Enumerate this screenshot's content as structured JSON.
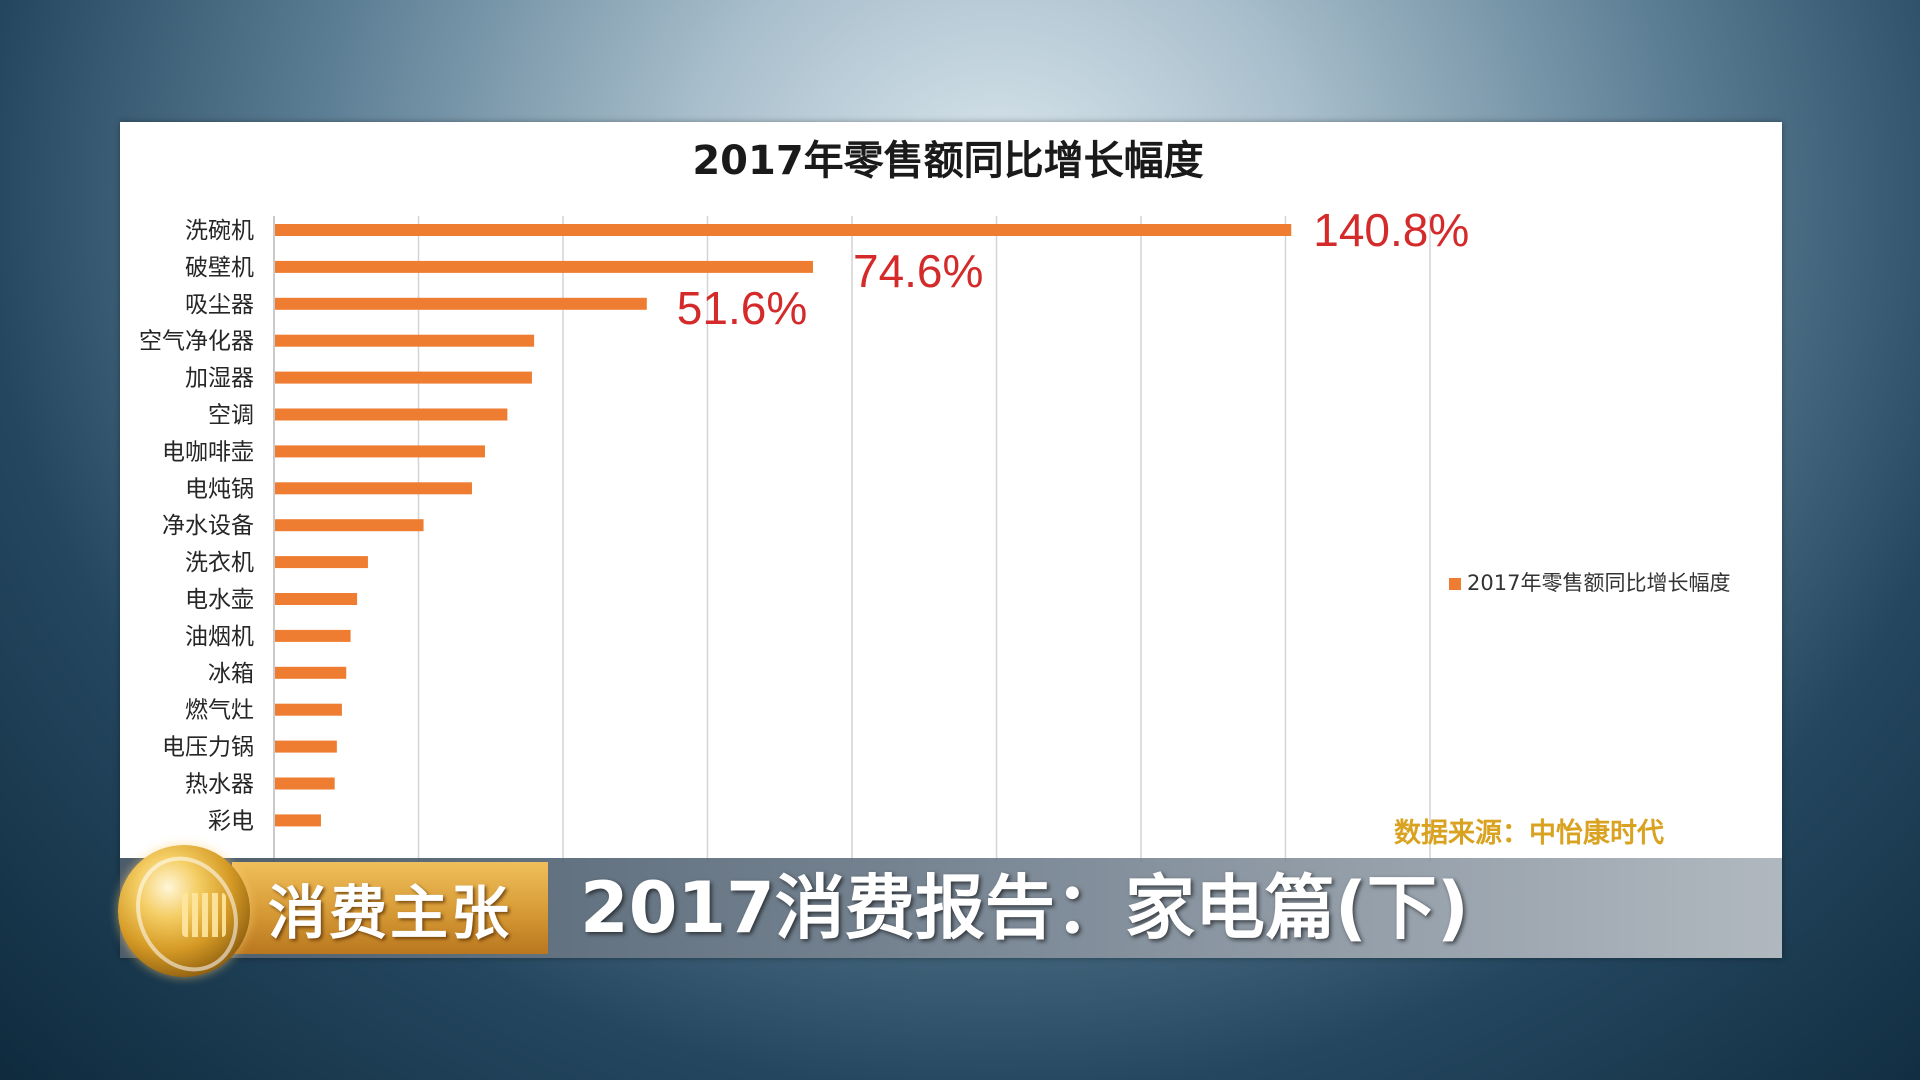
{
  "chart_data": {
    "type": "bar",
    "orientation": "horizontal",
    "title": "2017年零售额同比增长幅度",
    "categories": [
      "洗碗机",
      "破壁机",
      "吸尘器",
      "空气净化器",
      "加湿器",
      "空调",
      "电咖啡壶",
      "电炖锅",
      "净水设备",
      "洗衣机",
      "电水壶",
      "油烟机",
      "冰箱",
      "燃气灶",
      "电压力锅",
      "热水器",
      "彩电"
    ],
    "series": [
      {
        "name": "2017年零售额同比增长幅度",
        "values": [
          140.8,
          74.6,
          51.6,
          36.0,
          35.7,
          32.3,
          29.2,
          27.4,
          20.7,
          13.0,
          11.5,
          10.6,
          10.0,
          9.4,
          8.7,
          8.4,
          6.5
        ],
        "color": "#ee7d31"
      }
    ],
    "data_labels": [
      "140.8%",
      "74.6%",
      "51.6%"
    ],
    "xlim": [
      0,
      160
    ],
    "grid": "vertical",
    "legend_position": "right"
  },
  "source": "数据来源：中怡康时代",
  "banner": {
    "tag": "消费主张",
    "headline": "2017消费报告：家电篇(下)"
  }
}
